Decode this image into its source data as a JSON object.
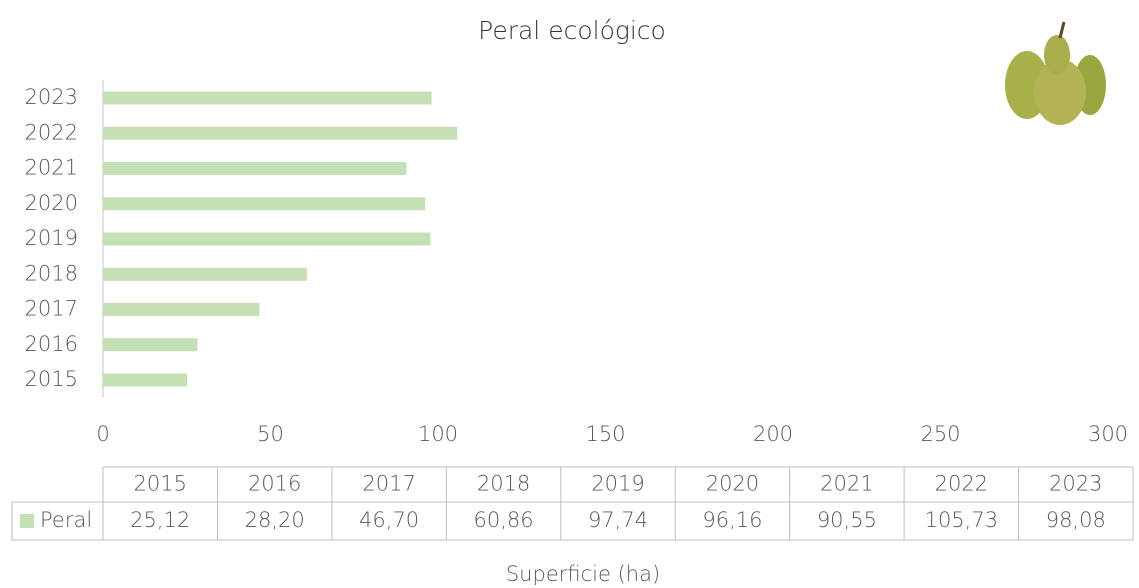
{
  "chart_data": {
    "type": "bar",
    "orientation": "horizontal",
    "title": "Peral ecológico",
    "x_label": "Superficie (ha)",
    "categories": [
      "2015",
      "2016",
      "2017",
      "2018",
      "2019",
      "2020",
      "2021",
      "2022",
      "2023"
    ],
    "series": [
      {
        "name": "Peral",
        "color": "#c5e0b4",
        "values": [
          25.12,
          28.2,
          46.7,
          60.86,
          97.74,
          96.16,
          90.55,
          105.73,
          98.08
        ],
        "value_labels": [
          "25,12",
          "28,20",
          "46,70",
          "60,86",
          "97,74",
          "96,16",
          "90,55",
          "105,73",
          "98,08"
        ]
      }
    ],
    "xlim": [
      0,
      300
    ],
    "xticks": [
      0,
      50,
      100,
      150,
      200,
      250,
      300
    ]
  }
}
